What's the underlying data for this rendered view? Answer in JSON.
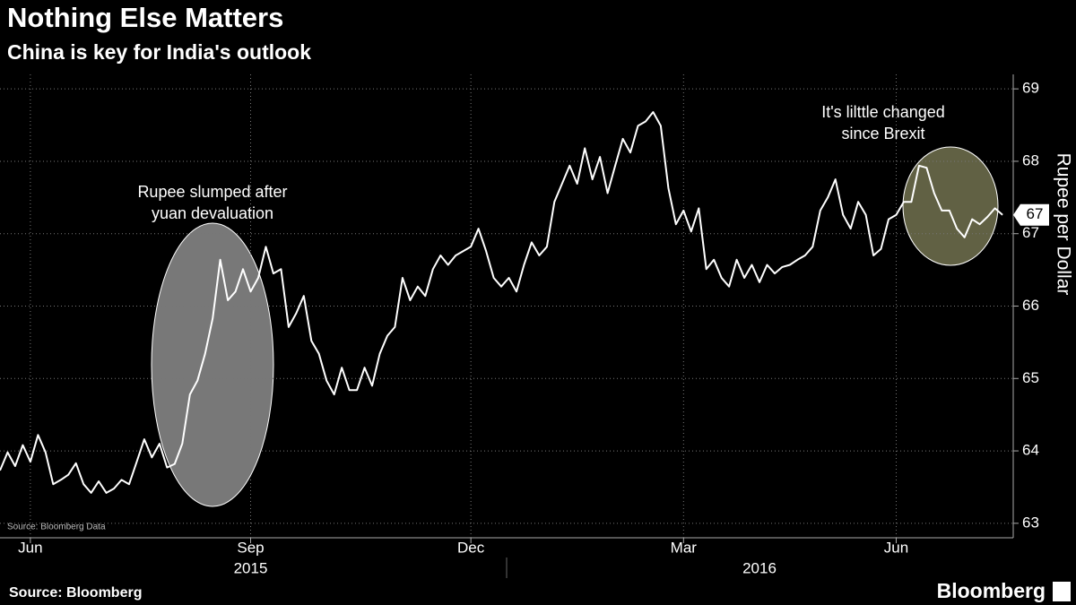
{
  "chart_data": {
    "type": "line",
    "title": "Nothing Else Matters",
    "subtitle": "China is key for India's outlook",
    "y_label": "Rupee per Dollar",
    "source_note": "Source: Bloomberg Data",
    "source": "Source: Bloomberg",
    "brand": "Bloomberg",
    "color": "#ffffff",
    "values": [
      63.73,
      63.98,
      63.79,
      64.08,
      63.85,
      64.22,
      63.98,
      63.54,
      63.6,
      63.67,
      63.83,
      63.54,
      63.42,
      63.58,
      63.42,
      63.48,
      63.6,
      63.54,
      63.85,
      64.16,
      63.91,
      64.1,
      63.77,
      63.82,
      64.1,
      64.78,
      64.97,
      65.34,
      65.83,
      66.64,
      66.08,
      66.2,
      66.51,
      66.2,
      66.39,
      66.82,
      66.45,
      66.51,
      65.71,
      65.9,
      66.14,
      65.52,
      65.34,
      64.97,
      64.78,
      65.15,
      64.84,
      64.84,
      65.15,
      64.9,
      65.34,
      65.59,
      65.71,
      66.39,
      66.08,
      66.27,
      66.14,
      66.51,
      66.7,
      66.57,
      66.7,
      66.76,
      66.82,
      67.07,
      66.76,
      66.39,
      66.27,
      66.39,
      66.2,
      66.57,
      66.88,
      66.7,
      66.82,
      67.44,
      67.69,
      67.94,
      67.69,
      68.18,
      67.75,
      68.06,
      67.56,
      67.94,
      68.31,
      68.12,
      68.49,
      68.55,
      68.68,
      68.49,
      67.63,
      67.13,
      67.32,
      67.03,
      67.35,
      66.51,
      66.64,
      66.39,
      66.27,
      66.64,
      66.39,
      66.57,
      66.33,
      66.57,
      66.45,
      66.54,
      66.57,
      66.64,
      66.7,
      66.82,
      67.32,
      67.5,
      67.75,
      67.26,
      67.07,
      67.44,
      67.26,
      66.7,
      66.79,
      67.2,
      67.26,
      67.44,
      67.44,
      67.94,
      67.91,
      67.56,
      67.32,
      67.32,
      67.07,
      66.95,
      67.2,
      67.13,
      67.23,
      67.35,
      67.26
    ],
    "last_value_label": "67",
    "xlim": [
      0,
      134
    ],
    "xticks": [
      {
        "value": 4,
        "label": "Jun"
      },
      {
        "value": 33,
        "label": "Sep"
      },
      {
        "value": 62,
        "label": "Dec"
      },
      {
        "value": 90,
        "label": "Mar"
      },
      {
        "value": 118,
        "label": "Jun"
      }
    ],
    "year_labels": [
      {
        "value": 33,
        "label": "2015"
      },
      {
        "value": 100,
        "label": "2016"
      }
    ],
    "ylim": [
      62.8,
      69.2
    ],
    "yticks": [
      63,
      64,
      65,
      66,
      67,
      68,
      69
    ],
    "grid": true,
    "annotations": [
      {
        "lines": [
          "Rupee slumped after",
          "yuan devaluation"
        ]
      },
      {
        "lines": [
          "It's lilttle changed",
          "since Brexit"
        ]
      }
    ]
  }
}
